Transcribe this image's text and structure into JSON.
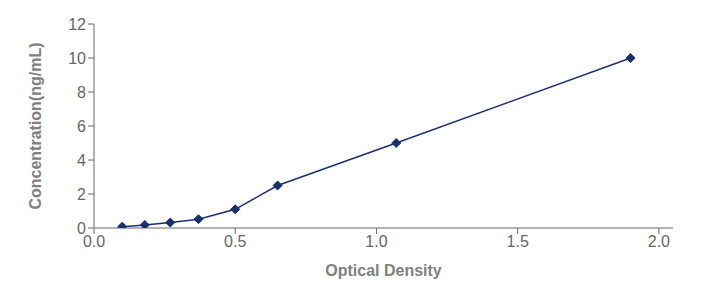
{
  "chart_data": {
    "type": "line",
    "x": [
      0.1,
      0.18,
      0.27,
      0.37,
      0.5,
      0.65,
      1.07,
      1.9
    ],
    "values": [
      0.08,
      0.18,
      0.32,
      0.52,
      1.1,
      2.5,
      5.0,
      10.0
    ],
    "color": "#1a2f6e",
    "marker": "diamond",
    "line_style": "solid",
    "xlabel": "Optical Density",
    "ylabel": "Concentration(ng/mL)",
    "xlim": [
      0.0,
      2.05
    ],
    "ylim": [
      0,
      12
    ],
    "xticks": [
      {
        "value": 0,
        "label": "0.0"
      },
      0.5,
      {
        "value": 1.0,
        "label": "1.0"
      },
      1.5,
      {
        "value": 2.0,
        "label": "2.0"
      }
    ],
    "yticks": [
      0,
      2,
      4,
      6,
      8,
      10,
      12
    ],
    "grid": false
  }
}
